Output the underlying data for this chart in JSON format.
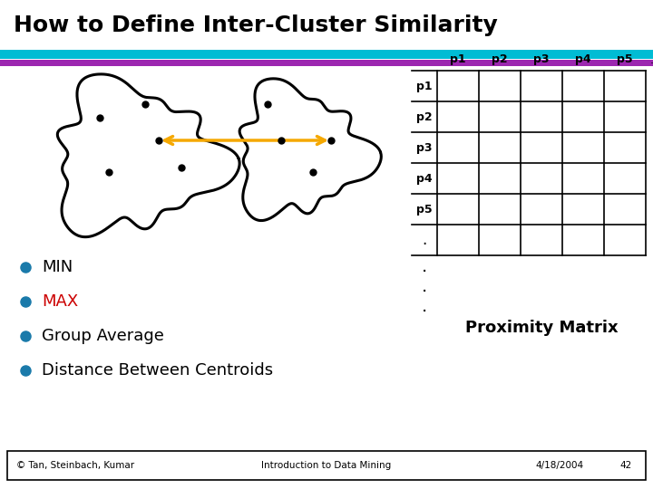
{
  "title": "How to Define Inter-Cluster Similarity",
  "title_fontsize": 18,
  "title_color": "#000000",
  "title_fontweight": "bold",
  "bg_color": "#ffffff",
  "stripe1_color": "#00bcd4",
  "stripe2_color": "#9c27b0",
  "bullet_color": "#1a7aaa",
  "bullets": [
    "MIN",
    "MAX",
    "Group Average",
    "Distance Between Centroids"
  ],
  "bullet_colors": [
    "#000000",
    "#cc0000",
    "#000000",
    "#000000"
  ],
  "proximity_label": "Proximity Matrix",
  "col_labels": [
    "p1",
    "p2",
    "p3",
    "p4",
    "p5",
    ". . ."
  ],
  "row_labels": [
    "p1",
    "p2",
    "p3",
    "p4",
    "p5"
  ],
  "footer_left": "© Tan, Steinbach, Kumar",
  "footer_center": "Introduction to Data Mining",
  "footer_right": "4/18/2004",
  "footer_page": "42",
  "arrow_color": "#f5a800"
}
